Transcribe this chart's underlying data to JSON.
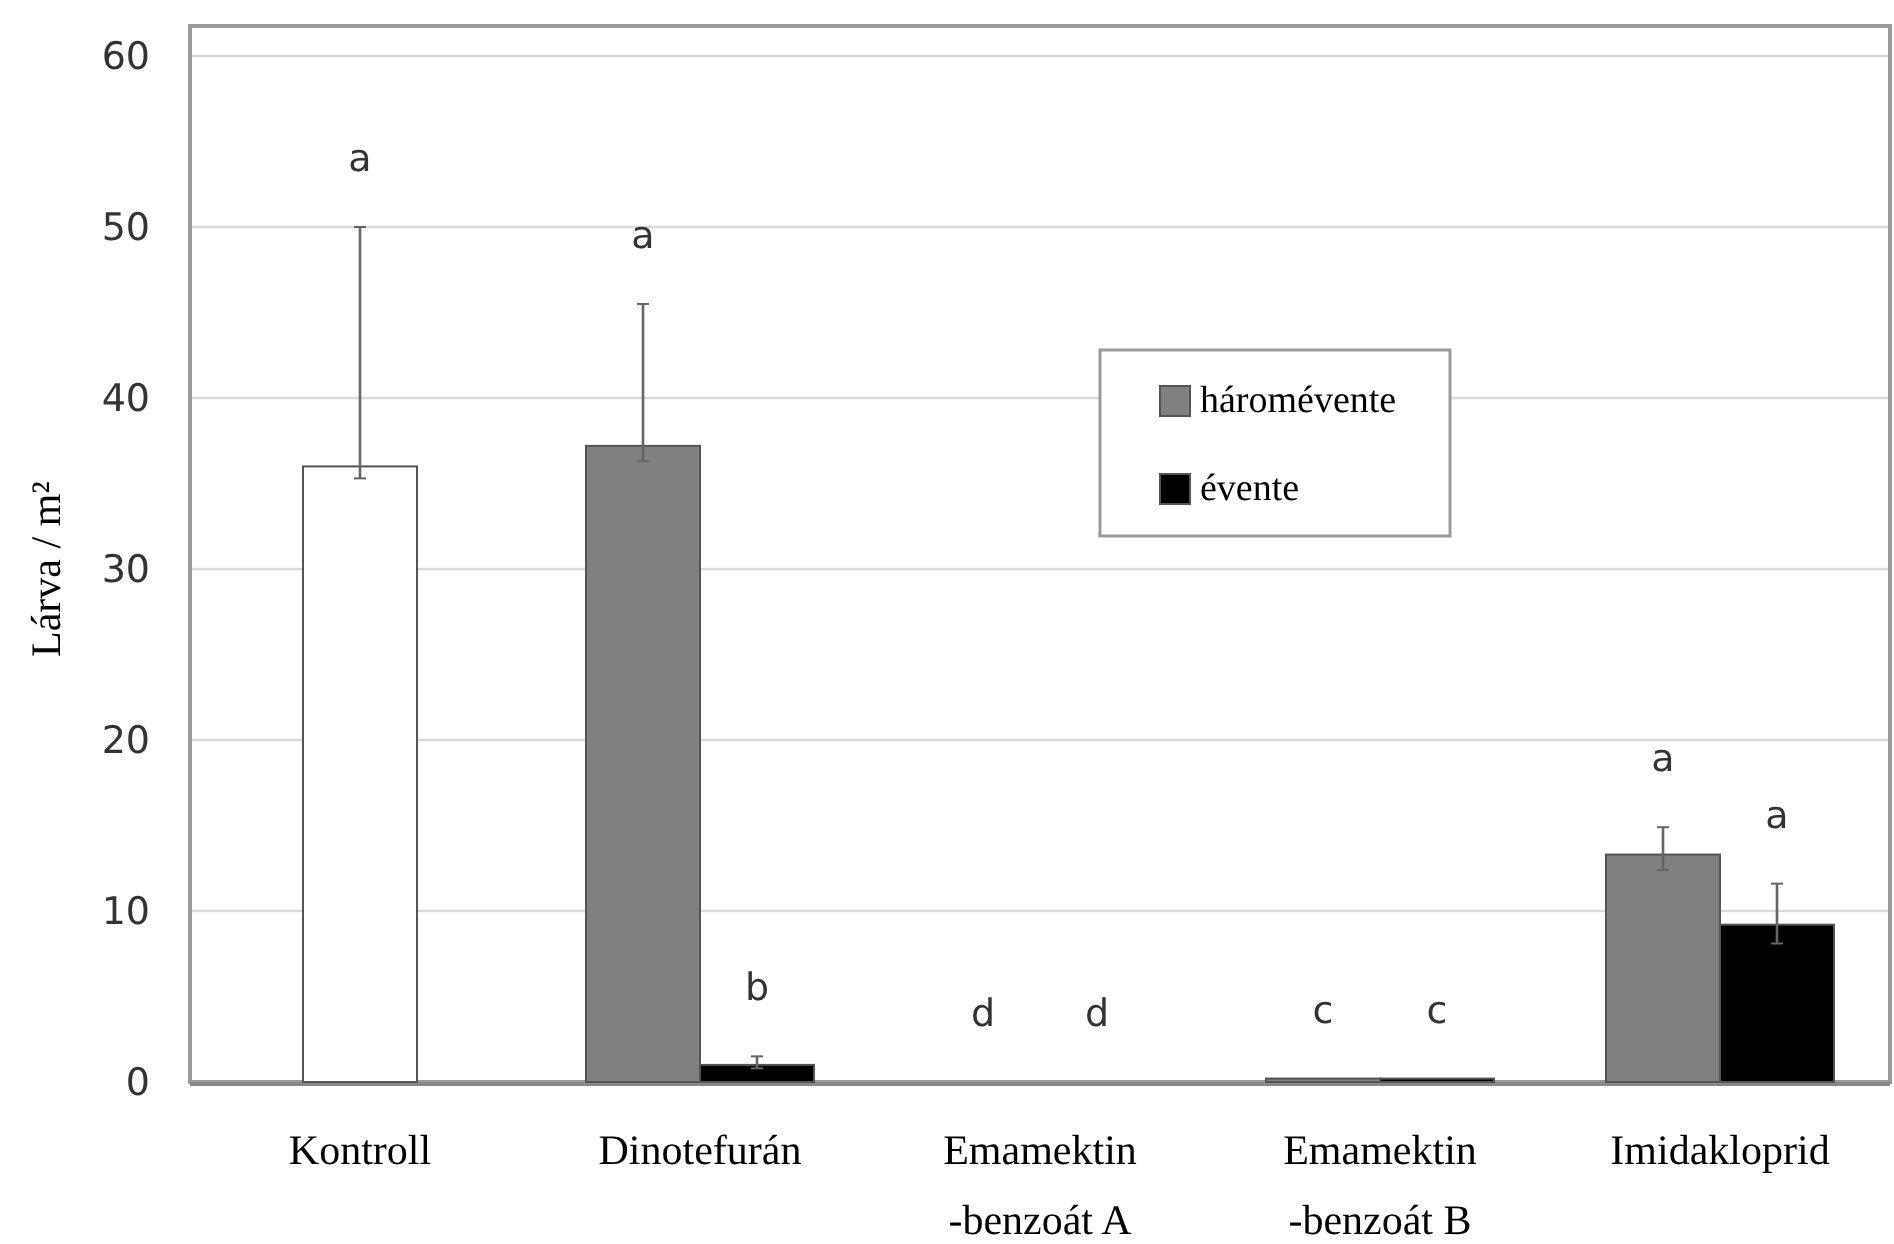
{
  "chart_data": {
    "type": "bar",
    "ylabel": "Lárva / m²",
    "categories": [
      "Kontroll",
      "Dinotefurán",
      "Emamektin\n-benzoát A",
      "Emamektin\n-benzoát B",
      "Imidakloprid"
    ],
    "series": [
      {
        "color": "#ffffff",
        "values": [
          36,
          null,
          null,
          null,
          null
        ],
        "errors": [
          [
            35.3,
            50
          ],
          null,
          null,
          null,
          null
        ]
      },
      {
        "name": "háromévente",
        "color": "#808080",
        "values": [
          null,
          37.2,
          0,
          0.2,
          13.3
        ],
        "errors": [
          null,
          [
            36.3,
            45.5
          ],
          null,
          null,
          [
            12.4,
            14.9
          ]
        ]
      },
      {
        "name": "évente",
        "color": "#000000",
        "values": [
          null,
          1,
          0,
          0.2,
          9.2
        ],
        "errors": [
          null,
          [
            0.8,
            1.5
          ],
          null,
          null,
          [
            8.1,
            11.6
          ]
        ]
      }
    ],
    "annotations": [
      "a",
      "a",
      "b",
      "d",
      "d",
      "c",
      "c",
      "a",
      "a"
    ],
    "ylim": [
      0,
      60
    ],
    "yticks": [
      0,
      10,
      20,
      30,
      40,
      50,
      60
    ],
    "grid": "y",
    "legend": "top right"
  }
}
